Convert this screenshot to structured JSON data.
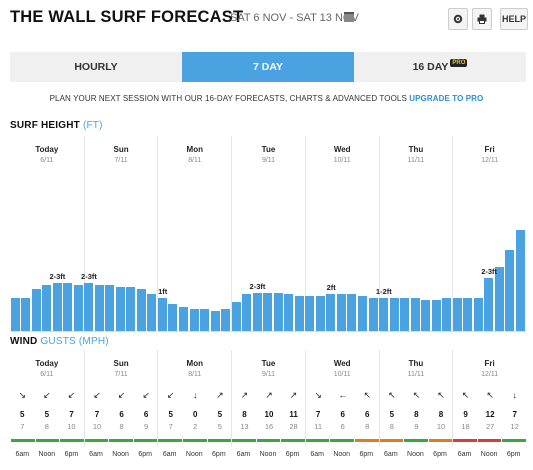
{
  "header": {
    "title": "THE WALL SURF FORECAST",
    "date_range": "SAT 6 NOV - SAT 13 NOV",
    "help_label": "HELP",
    "icons": [
      "calendar-icon",
      "gear-icon",
      "print-icon"
    ]
  },
  "tabs": [
    {
      "label": "HOURLY",
      "active": false
    },
    {
      "label": "7 DAY",
      "active": true
    },
    {
      "label": "16 DAY",
      "active": false,
      "badge": "PRO"
    }
  ],
  "promo": {
    "text": "PLAN YOUR NEXT SESSION WITH OUR 16-DAY FORECASTS, CHARTS & ADVANCED TOOLS",
    "link": "UPGRADE TO PRO"
  },
  "surf": {
    "title": "SURF HEIGHT",
    "unit": "(FT)",
    "days": [
      {
        "name": "Today",
        "date": "6/11",
        "label": "2-3ft"
      },
      {
        "name": "Sun",
        "date": "7/11",
        "label": "2-3ft"
      },
      {
        "name": "Mon",
        "date": "8/11",
        "label": "1ft"
      },
      {
        "name": "Tue",
        "date": "9/11",
        "label": "2-3ft"
      },
      {
        "name": "Wed",
        "date": "10/11",
        "label": "2ft"
      },
      {
        "name": "Thu",
        "date": "11/11",
        "label": "1-2ft"
      },
      {
        "name": "Fri",
        "date": "12/11",
        "label": "2-3ft"
      }
    ]
  },
  "chart_data": {
    "type": "bar",
    "title": "SURF HEIGHT (FT)",
    "days": [
      "Today",
      "Sun",
      "Mon",
      "Tue",
      "Wed",
      "Thu",
      "Fri"
    ],
    "bars_per_day": 7,
    "values": [
      1.8,
      1.8,
      2.3,
      2.5,
      2.6,
      2.6,
      2.5,
      2.6,
      2.5,
      2.5,
      2.4,
      2.4,
      2.3,
      2.0,
      1.8,
      1.5,
      1.3,
      1.2,
      1.2,
      1.1,
      1.2,
      1.6,
      2.0,
      2.1,
      2.1,
      2.1,
      2.0,
      1.9,
      1.9,
      1.9,
      2.0,
      2.0,
      2.0,
      1.9,
      1.8,
      1.8,
      1.8,
      1.8,
      1.8,
      1.7,
      1.7,
      1.8,
      1.8,
      1.8,
      1.8,
      2.9,
      3.5,
      4.4,
      5.5
    ],
    "day_labels": [
      "2-3ft",
      "2-3ft",
      "1ft",
      "2-3ft",
      "2ft",
      "1-2ft",
      "2-3ft"
    ],
    "ylim": [
      0,
      6
    ]
  },
  "wind": {
    "title": "WIND",
    "gusts_label": "GUSTS",
    "unit": "(MPH)",
    "days": [
      {
        "name": "Today",
        "date": "6/11",
        "arrows": [
          "↘",
          "↙",
          "↙"
        ],
        "speeds": [
          "5",
          "5",
          "7"
        ],
        "gusts": [
          "7",
          "8",
          "10"
        ],
        "ratings": [
          "#3aa83a",
          "#3aa83a",
          "#3aa83a"
        ]
      },
      {
        "name": "Sun",
        "date": "7/11",
        "arrows": [
          "↙",
          "↙",
          "↙"
        ],
        "speeds": [
          "7",
          "6",
          "6"
        ],
        "gusts": [
          "10",
          "8",
          "9"
        ],
        "ratings": [
          "#3aa83a",
          "#3aa83a",
          "#3aa83a"
        ]
      },
      {
        "name": "Mon",
        "date": "8/11",
        "arrows": [
          "↙",
          "↓",
          "↗"
        ],
        "speeds": [
          "5",
          "0",
          "5"
        ],
        "gusts": [
          "7",
          "2",
          "5"
        ],
        "ratings": [
          "#3aa83a",
          "#3aa83a",
          "#3aa83a"
        ]
      },
      {
        "name": "Tue",
        "date": "9/11",
        "arrows": [
          "↗",
          "↗",
          "↗"
        ],
        "speeds": [
          "8",
          "10",
          "11"
        ],
        "gusts": [
          "13",
          "16",
          "28"
        ],
        "ratings": [
          "#3aa83a",
          "#3aa83a",
          "#3aa83a"
        ]
      },
      {
        "name": "Wed",
        "date": "10/11",
        "arrows": [
          "↘",
          "←",
          "↖"
        ],
        "speeds": [
          "7",
          "6",
          "6"
        ],
        "gusts": [
          "11",
          "6",
          "8"
        ],
        "ratings": [
          "#3aa83a",
          "#3aa83a",
          "#e07b1a"
        ]
      },
      {
        "name": "Thu",
        "date": "11/11",
        "arrows": [
          "↖",
          "↖",
          "↖"
        ],
        "speeds": [
          "5",
          "8",
          "8"
        ],
        "gusts": [
          "8",
          "9",
          "10"
        ],
        "ratings": [
          "#e07b1a",
          "#3aa83a",
          "#e07b1a"
        ]
      },
      {
        "name": "Fri",
        "date": "12/11",
        "arrows": [
          "↖",
          "↖",
          "↓"
        ],
        "speeds": [
          "9",
          "12",
          "7"
        ],
        "gusts": [
          "18",
          "27",
          "12"
        ],
        "ratings": [
          "#d93a3a",
          "#d93a3a",
          "#3aa83a"
        ]
      }
    ],
    "times": [
      "6am",
      "Noon",
      "6pm"
    ]
  }
}
